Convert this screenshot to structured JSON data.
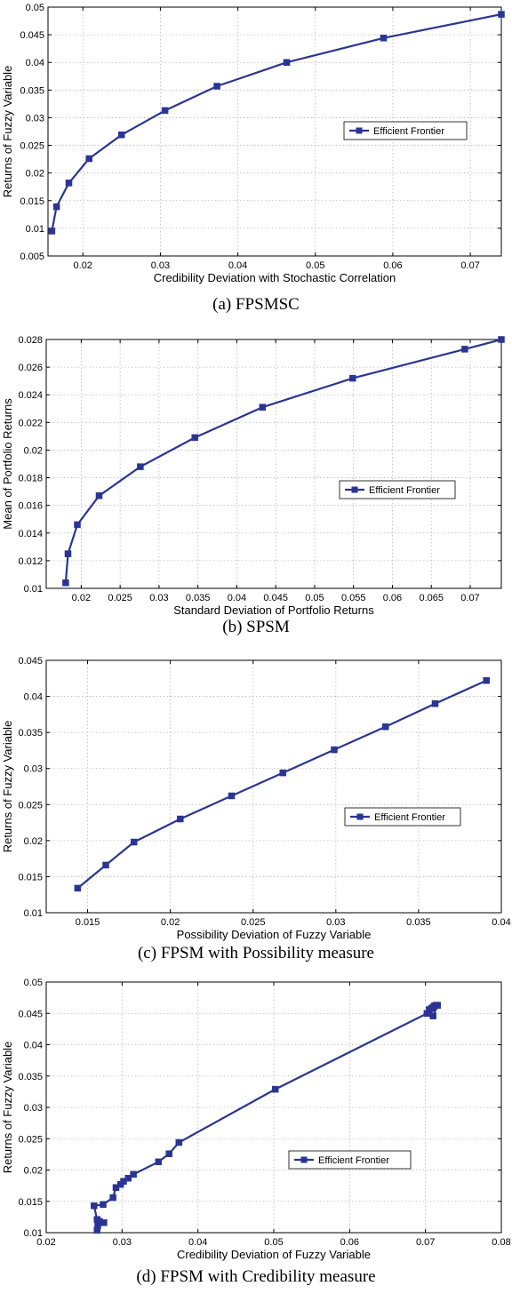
{
  "chart_data": [
    {
      "type": "line",
      "caption": "(a) FPSMSC",
      "xlabel": "Credibility Deviation with Stochastic Correlation",
      "ylabel": "Returns of Fuzzy Variable",
      "xlim": [
        0.0155,
        0.074
      ],
      "ylim": [
        0.005,
        0.05
      ],
      "xticks": [
        0.02,
        0.03,
        0.04,
        0.05,
        0.06,
        0.07
      ],
      "xticklabels": [
        "0.02",
        "0.03",
        "0.04",
        "0.05",
        "0.06",
        "0.07"
      ],
      "yticks": [
        0.005,
        0.01,
        0.015,
        0.02,
        0.025,
        0.03,
        0.035,
        0.04,
        0.045,
        0.05
      ],
      "yticklabels": [
        "0.005",
        "0.01",
        "0.015",
        "0.02",
        "0.025",
        "0.03",
        "0.035",
        "0.04",
        "0.045",
        "0.05"
      ],
      "grid": true,
      "legend_position": "right",
      "series": [
        {
          "name": "Efficient Frontier",
          "color": "#2a3593",
          "x": [
            0.016,
            0.0166,
            0.0182,
            0.0208,
            0.025,
            0.0306,
            0.0373,
            0.0463,
            0.0588,
            0.074
          ],
          "y": [
            0.0095,
            0.0139,
            0.0182,
            0.0226,
            0.0269,
            0.0313,
            0.0357,
            0.04,
            0.0444,
            0.0487
          ]
        }
      ]
    },
    {
      "type": "line",
      "caption": "(b) SPSM",
      "xlabel": "Standard Deviation of Portfolio Returns",
      "ylabel": "Mean of Portfolio Returns",
      "xlim": [
        0.0155,
        0.074
      ],
      "ylim": [
        0.01,
        0.028
      ],
      "xticks": [
        0.02,
        0.025,
        0.03,
        0.035,
        0.04,
        0.045,
        0.05,
        0.055,
        0.06,
        0.065,
        0.07
      ],
      "xticklabels": [
        "0.02",
        "0.025",
        "0.03",
        "0.035",
        "0.04",
        "0.045",
        "0.05",
        "0.055",
        "0.06",
        "0.065",
        "0.07"
      ],
      "yticks": [
        0.01,
        0.012,
        0.014,
        0.016,
        0.018,
        0.02,
        0.022,
        0.024,
        0.026,
        0.028
      ],
      "yticklabels": [
        "0.01",
        "0.012",
        "0.014",
        "0.016",
        "0.018",
        "0.02",
        "0.022",
        "0.024",
        "0.026",
        "0.028"
      ],
      "grid": true,
      "legend_position": "right",
      "series": [
        {
          "name": "Efficient Frontier",
          "color": "#2a3593",
          "x": [
            0.018,
            0.0183,
            0.0195,
            0.0223,
            0.0276,
            0.0346,
            0.0433,
            0.0549,
            0.0693,
            0.074
          ],
          "y": [
            0.0104,
            0.0125,
            0.0146,
            0.0167,
            0.0188,
            0.0209,
            0.0231,
            0.0252,
            0.0273,
            0.028
          ]
        }
      ]
    },
    {
      "type": "line",
      "caption": "(c) FPSM with Possibility measure",
      "xlabel": "Possibility Deviation of Fuzzy Variable",
      "ylabel": "Returns of Fuzzy Variable",
      "xlim": [
        0.0125,
        0.04
      ],
      "ylim": [
        0.01,
        0.045
      ],
      "xticks": [
        0.015,
        0.02,
        0.025,
        0.03,
        0.035,
        0.04
      ],
      "xticklabels": [
        "0.015",
        "0.02",
        "0.025",
        "0.03",
        "0.035",
        "0.04"
      ],
      "yticks": [
        0.01,
        0.015,
        0.02,
        0.025,
        0.03,
        0.035,
        0.04,
        0.045
      ],
      "yticklabels": [
        "0.01",
        "0.015",
        "0.02",
        "0.025",
        "0.03",
        "0.035",
        "0.04",
        "0.045"
      ],
      "grid": true,
      "legend_position": "right",
      "series": [
        {
          "name": "Efficient Frontier",
          "color": "#2a3593",
          "x": [
            0.0144,
            0.0161,
            0.0178,
            0.0206,
            0.0237,
            0.0268,
            0.0299,
            0.033,
            0.036,
            0.0391
          ],
          "y": [
            0.0134,
            0.0166,
            0.0198,
            0.023,
            0.0262,
            0.0294,
            0.0326,
            0.0358,
            0.039,
            0.0422
          ]
        }
      ]
    },
    {
      "type": "line",
      "caption": "(d) FPSM with Credibility measure",
      "xlabel": "Credibility Deviation of Fuzzy Variable",
      "ylabel": "Returns of Fuzzy Variable",
      "xlim": [
        0.02,
        0.08
      ],
      "ylim": [
        0.01,
        0.05
      ],
      "xticks": [
        0.02,
        0.03,
        0.04,
        0.05,
        0.06,
        0.07,
        0.08
      ],
      "xticklabels": [
        "0.02",
        "0.03",
        "0.04",
        "0.05",
        "0.06",
        "0.07",
        "0.08"
      ],
      "yticks": [
        0.01,
        0.015,
        0.02,
        0.025,
        0.03,
        0.035,
        0.04,
        0.045,
        0.05
      ],
      "yticklabels": [
        "0.01",
        "0.015",
        "0.02",
        "0.025",
        "0.03",
        "0.035",
        "0.04",
        "0.045",
        "0.05"
      ],
      "grid": true,
      "legend_position": "right",
      "series": [
        {
          "name": "Efficient Frontier",
          "color": "#2a3593",
          "x": [
            0.0267,
            0.0268,
            0.027,
            0.0272,
            0.0276,
            0.0267,
            0.0263,
            0.0275,
            0.0288,
            0.0292,
            0.0298,
            0.0302,
            0.0308,
            0.0315,
            0.0348,
            0.0362,
            0.0375,
            0.0502,
            0.0702,
            0.0705,
            0.0708,
            0.071,
            0.0712,
            0.0714,
            0.0716,
            0.071
          ],
          "y": [
            0.0104,
            0.0111,
            0.0118,
            0.0116,
            0.0116,
            0.0121,
            0.0143,
            0.0145,
            0.0156,
            0.0172,
            0.0177,
            0.0182,
            0.0187,
            0.0193,
            0.0213,
            0.0226,
            0.0244,
            0.0329,
            0.045,
            0.0456,
            0.0458,
            0.046,
            0.0462,
            0.0463,
            0.0463,
            0.0446
          ]
        }
      ]
    }
  ]
}
